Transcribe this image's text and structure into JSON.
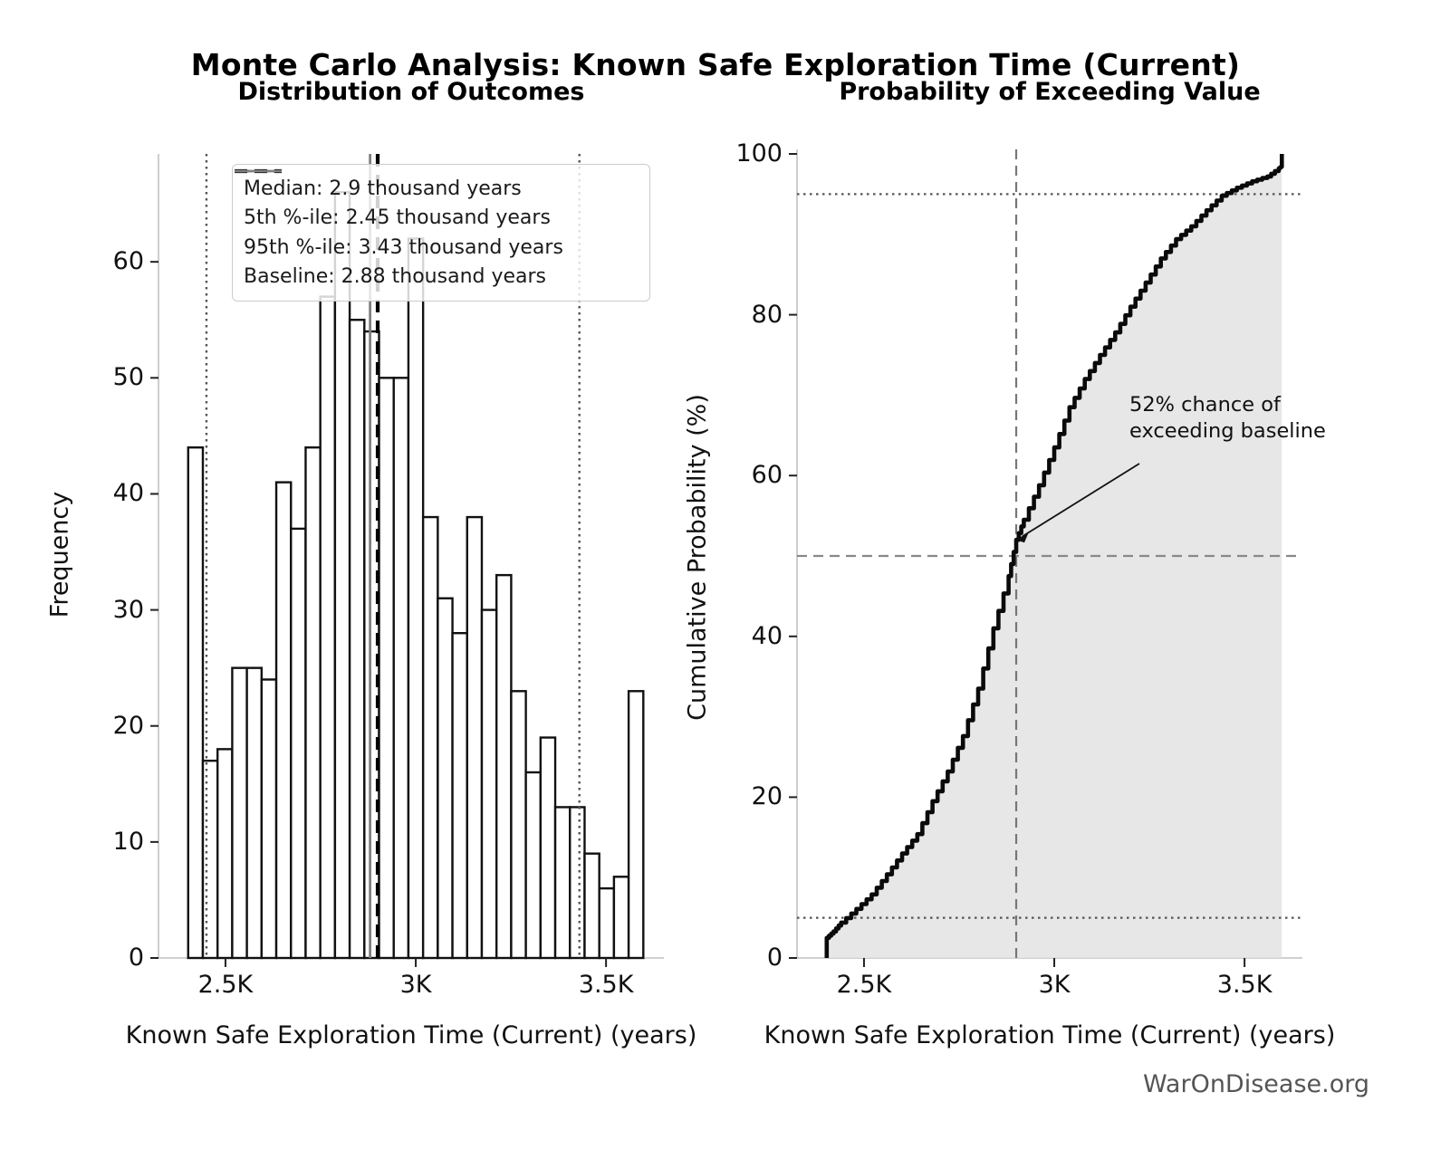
{
  "main_title": "Monte Carlo Analysis: Known Safe Exploration Time (Current)",
  "watermark": "WarOnDisease.org",
  "chart_data": [
    {
      "type": "bar",
      "subtype": "histogram",
      "title": "Distribution of Outcomes",
      "xlabel": "Known Safe Exploration Time (Current) (years)",
      "ylabel": "Frequency",
      "xlim": [
        2324,
        3652
      ],
      "ylim": [
        0,
        69.3
      ],
      "x_tick_values": [
        2500,
        3000,
        3500
      ],
      "x_tick_labels": [
        "2.5K",
        "3K",
        "3.5K"
      ],
      "y_tick_values": [
        0,
        10,
        20,
        30,
        40,
        50,
        60
      ],
      "bin_start": 2402,
      "bin_end": 3598,
      "values": [
        44,
        17,
        18,
        25,
        25,
        24,
        41,
        37,
        44,
        57,
        66,
        55,
        54,
        50,
        50,
        62,
        38,
        31,
        28,
        38,
        30,
        33,
        23,
        16,
        19,
        13,
        13,
        9,
        6,
        7,
        23
      ],
      "bar_fill": "#ffffff",
      "bar_edge": "#111111",
      "ref_lines": [
        {
          "name": "median",
          "value": 2900,
          "style": "dashed-bold",
          "color": "#000000"
        },
        {
          "name": "p5",
          "value": 2450,
          "style": "dotted",
          "color": "#555555"
        },
        {
          "name": "p95",
          "value": 3430,
          "style": "dotted",
          "color": "#555555"
        },
        {
          "name": "baseline",
          "value": 2880,
          "style": "solid",
          "color": "#808080"
        }
      ],
      "legend": [
        {
          "label": "Median: 2.9 thousand years",
          "style": "dashed-bold",
          "color": "#000000"
        },
        {
          "label": "5th %-ile: 2.45 thousand years",
          "style": "dotted",
          "color": "#555555"
        },
        {
          "label": "95th %-ile: 3.43 thousand years",
          "style": "dotted",
          "color": "#555555"
        },
        {
          "label": "Baseline: 2.88 thousand years",
          "style": "solid",
          "color": "#808080"
        }
      ],
      "legend_position": "upper left",
      "grid": false
    },
    {
      "type": "line",
      "subtype": "ecdf",
      "title": "Probability of Exceeding Value",
      "xlabel": "Known Safe Exploration Time (Current) (years)",
      "ylabel": "Cumulative Probability (%)",
      "xlim": [
        2324,
        3652
      ],
      "ylim": [
        0,
        100
      ],
      "x_tick_values": [
        2500,
        3000,
        3500
      ],
      "x_tick_labels": [
        "2.5K",
        "3K",
        "3.5K"
      ],
      "y_tick_values": [
        0,
        20,
        40,
        60,
        80,
        100
      ],
      "line_color": "#0a0a0a",
      "fill_color": "#e3e3e3",
      "points": [
        [
          2402,
          0
        ],
        [
          2402,
          2.5
        ],
        [
          2420,
          3.3
        ],
        [
          2440,
          4.4
        ],
        [
          2480,
          6.1
        ],
        [
          2520,
          7.9
        ],
        [
          2560,
          10.4
        ],
        [
          2600,
          13.0
        ],
        [
          2640,
          15.4
        ],
        [
          2680,
          19.5
        ],
        [
          2720,
          23.2
        ],
        [
          2760,
          27.6
        ],
        [
          2800,
          33.5
        ],
        [
          2840,
          41.0
        ],
        [
          2880,
          47.5
        ],
        [
          2900,
          52.0
        ],
        [
          2920,
          54.5
        ],
        [
          2960,
          58.8
        ],
        [
          3000,
          63.5
        ],
        [
          3040,
          68.5
        ],
        [
          3080,
          72.0
        ],
        [
          3120,
          75.0
        ],
        [
          3160,
          77.8
        ],
        [
          3200,
          81.0
        ],
        [
          3240,
          84.0
        ],
        [
          3280,
          87.0
        ],
        [
          3320,
          89.4
        ],
        [
          3360,
          91.0
        ],
        [
          3400,
          93.0
        ],
        [
          3440,
          94.8
        ],
        [
          3480,
          95.8
        ],
        [
          3520,
          96.6
        ],
        [
          3560,
          97.2
        ],
        [
          3590,
          98.2
        ],
        [
          3598,
          98.5
        ],
        [
          3598,
          100
        ]
      ],
      "h_ref_lines": [
        {
          "name": "p95-level",
          "value": 95,
          "style": "dotted",
          "color": "#555555"
        },
        {
          "name": "p5-level",
          "value": 5,
          "style": "dotted",
          "color": "#555555"
        },
        {
          "name": "median-level",
          "value": 50,
          "style": "dashed",
          "color": "#888888"
        }
      ],
      "v_ref_lines": [
        {
          "name": "median",
          "value": 2900,
          "style": "dashed",
          "color": "#777777"
        }
      ],
      "annotation": {
        "line1": "52% chance of",
        "line2": "exceeding baseline",
        "target_x": 2900,
        "target_y": 52
      },
      "grid": false
    }
  ]
}
